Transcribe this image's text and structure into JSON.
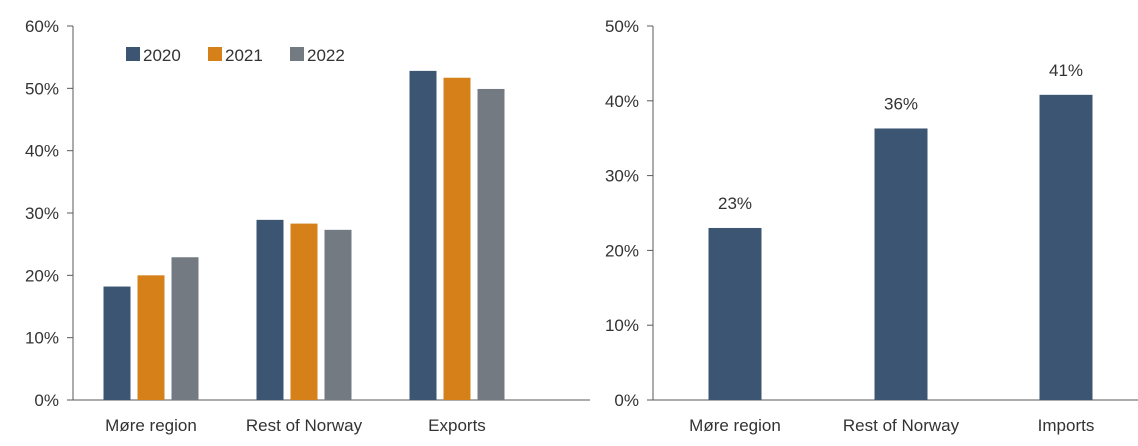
{
  "chart_data": [
    {
      "type": "bar",
      "categories": [
        "Møre region",
        "Rest of Norway",
        "Exports"
      ],
      "series": [
        {
          "name": "2020",
          "values": [
            18.2,
            28.9,
            52.8
          ]
        },
        {
          "name": "2021",
          "values": [
            20.0,
            28.3,
            51.7
          ]
        },
        {
          "name": "2022",
          "values": [
            22.9,
            27.3,
            49.9
          ]
        }
      ],
      "ylim": [
        0,
        60
      ],
      "yticks": [
        0,
        10,
        20,
        30,
        40,
        50,
        60
      ],
      "ytick_labels": [
        "0%",
        "10%",
        "20%",
        "30%",
        "40%",
        "50%",
        "60%"
      ],
      "grid": false,
      "legend": {
        "position": "top-left",
        "entries": [
          "2020",
          "2021",
          "2022"
        ]
      },
      "colors": [
        "#3b5573",
        "#d6801a",
        "#737a82"
      ]
    },
    {
      "type": "bar",
      "categories": [
        "Møre region",
        "Rest of Norway",
        "Imports"
      ],
      "series": [
        {
          "values": [
            23,
            36.3,
            40.8
          ],
          "labels": [
            "23%",
            "36%",
            "41%"
          ]
        }
      ],
      "ylim": [
        0,
        50
      ],
      "yticks": [
        0,
        10,
        20,
        30,
        40,
        50
      ],
      "ytick_labels": [
        "0%",
        "10%",
        "20%",
        "30%",
        "40%",
        "50%"
      ],
      "grid": false,
      "colors": [
        "#3b5573"
      ]
    }
  ]
}
